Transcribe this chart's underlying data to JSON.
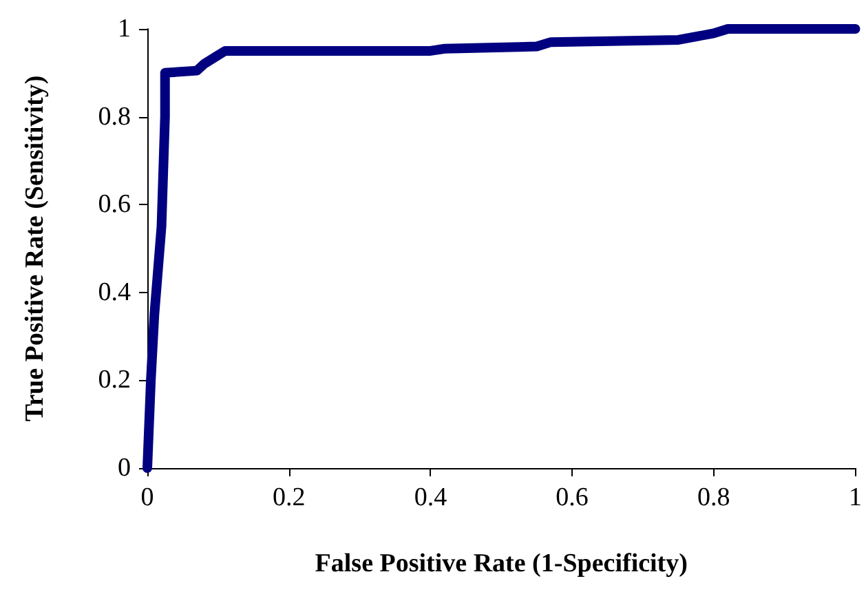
{
  "chart_data": {
    "type": "line",
    "xlabel": "False Positive Rate (1-Specificity)",
    "ylabel": "True Positive Rate (Sensitivity)",
    "x": [
      0,
      0.005,
      0.01,
      0.015,
      0.02,
      0.022,
      0.025,
      0.025,
      0.07,
      0.08,
      0.1,
      0.11,
      0.4,
      0.42,
      0.55,
      0.57,
      0.75,
      0.8,
      0.82,
      1
    ],
    "series": [
      {
        "color": "#000080",
        "values": [
          0,
          0.2,
          0.35,
          0.45,
          0.55,
          0.65,
          0.8,
          0.9,
          0.905,
          0.92,
          0.94,
          0.95,
          0.95,
          0.955,
          0.96,
          0.97,
          0.975,
          0.99,
          1,
          1
        ]
      }
    ],
    "xlim": [
      0,
      1
    ],
    "xticks": [
      0,
      0.2,
      0.4,
      0.6,
      0.8,
      1
    ],
    "ylim": [
      0,
      1
    ],
    "yticks": [
      0,
      0.2,
      0.4,
      0.6,
      0.8,
      1
    ],
    "grid": false,
    "line_style": "solid"
  }
}
